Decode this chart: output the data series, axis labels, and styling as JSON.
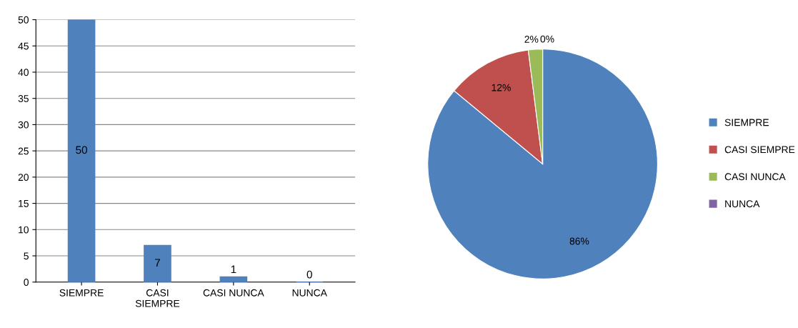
{
  "chart_data": [
    {
      "type": "bar",
      "categories": [
        "SIEMPRE",
        "CASI\nSIEMPRE",
        "CASI NUNCA",
        "NUNCA"
      ],
      "values": [
        50,
        7,
        1,
        0
      ],
      "color": "#4f81bd",
      "ylim": [
        0,
        50
      ],
      "yticks": [
        0,
        5,
        10,
        15,
        20,
        25,
        30,
        35,
        40,
        45,
        50
      ],
      "grid": "y",
      "data_labels": true,
      "legend": false
    },
    {
      "type": "pie",
      "categories": [
        "SIEMPRE",
        "CASI SIEMPRE",
        "CASI NUNCA",
        "NUNCA"
      ],
      "values": [
        86,
        12,
        2,
        0
      ],
      "colors": [
        "#4f81bd",
        "#c0504d",
        "#9bbb59",
        "#8064a2"
      ],
      "value_labels": [
        "86%",
        "12%",
        "2%",
        "0%"
      ],
      "legend": "right"
    }
  ]
}
